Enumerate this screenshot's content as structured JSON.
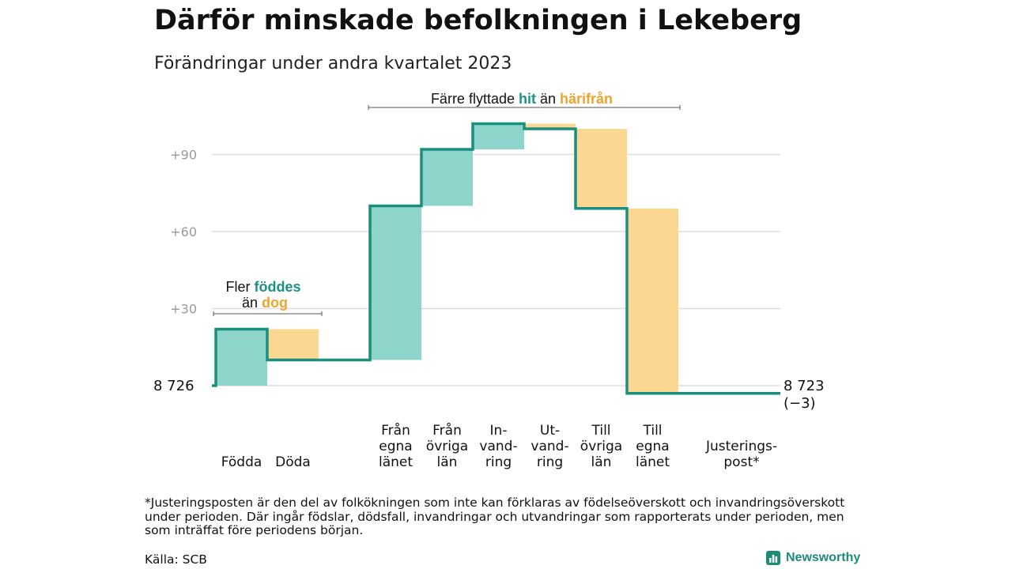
{
  "chart_data": {
    "type": "waterfall",
    "title": "Därför minskade befolkningen i Lekeberg",
    "subtitle": "Förändringar under andra kvartalet 2023",
    "start": {
      "label": "8  726",
      "value": 8726
    },
    "end": {
      "label": "8 723",
      "change_label": "(−3)",
      "value": 8723
    },
    "y_ticks": [
      {
        "value": 30,
        "label": "+30"
      },
      {
        "value": 60,
        "label": "+60"
      },
      {
        "value": 90,
        "label": "+90"
      }
    ],
    "steps": [
      {
        "label_lines": [
          "Födda"
        ],
        "value": 22,
        "kind": "inflow"
      },
      {
        "label_lines": [
          "Döda"
        ],
        "value": -12,
        "kind": "outflow"
      },
      {
        "label_lines": [
          "Från",
          "egna",
          "länet"
        ],
        "value": 60,
        "kind": "inflow"
      },
      {
        "label_lines": [
          "Från",
          "övriga",
          "län"
        ],
        "value": 22,
        "kind": "inflow"
      },
      {
        "label_lines": [
          "In-",
          "vand-",
          "ring"
        ],
        "value": 10,
        "kind": "inflow"
      },
      {
        "label_lines": [
          "Ut-",
          "vand-",
          "ring"
        ],
        "value": -2,
        "kind": "outflow"
      },
      {
        "label_lines": [
          "Till",
          "övriga",
          "län"
        ],
        "value": -31,
        "kind": "outflow"
      },
      {
        "label_lines": [
          "Till",
          "egna",
          "länet"
        ],
        "value": -72,
        "kind": "outflow"
      },
      {
        "label_lines": [
          "Justerings-",
          "post*"
        ],
        "value": 0,
        "kind": "adjustment"
      }
    ],
    "annotations": {
      "births": {
        "line1_prefix": "Fler ",
        "line1_highlight": "föddes",
        "line2_prefix": "än ",
        "line2_highlight": "dog"
      },
      "migration": {
        "prefix": "Färre flyttade ",
        "highlight1": "hit",
        "middle": " än ",
        "highlight2": "härifrån"
      }
    },
    "grid": true
  },
  "colors": {
    "inflow_fill": "#8dd4ca",
    "outflow_fill": "#fbd792",
    "line": "#1a8f7e",
    "highlight_in": "#1a9383",
    "highlight_out": "#f0a52a",
    "grid": "#dddddd",
    "tick_label": "#9a9a9a"
  },
  "footnote": "*Justeringsposten är den del av folkökningen som inte kan förklaras av födelseöverskott och invandringsöverskott under perioden. Där ingår födslar, dödsfall, invandringar och utvandringar som rapporterats under perioden, men som inträffat före periodens början.",
  "source": "Källa: SCB",
  "brand": {
    "name": "Newsworthy",
    "icon": "bar-chart-logo-icon"
  }
}
